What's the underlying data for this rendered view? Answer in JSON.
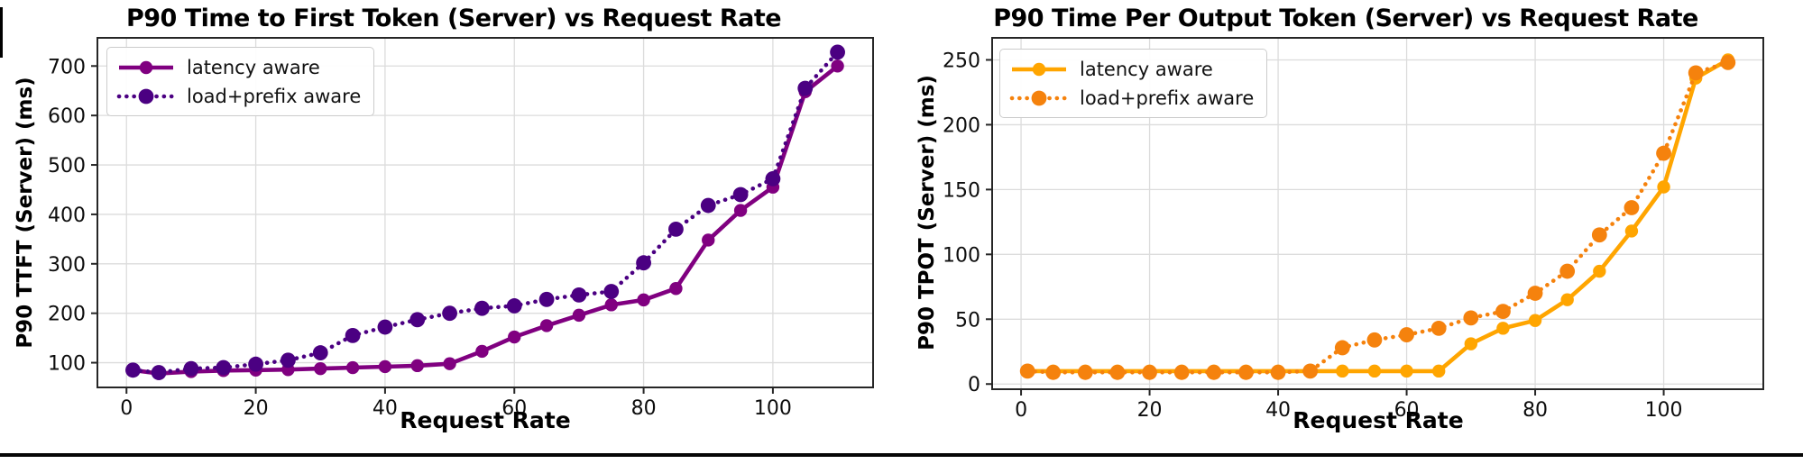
{
  "page": {
    "background": "#ffffff",
    "footer_rule_color": "#060606"
  },
  "chart_data": [
    {
      "type": "line",
      "title": "P90 Time to First Token (Server) vs Request Rate",
      "xlabel": "Request Rate",
      "ylabel": "P90 TTFT (Server) (ms)",
      "x": [
        1,
        5,
        10,
        15,
        20,
        25,
        30,
        35,
        40,
        45,
        50,
        55,
        60,
        65,
        70,
        75,
        80,
        85,
        90,
        95,
        100,
        105,
        110
      ],
      "series": [
        {
          "name": "latency aware",
          "color": "#800080",
          "line_style": "solid",
          "marker": "circle",
          "values": [
            85,
            78,
            82,
            84,
            85,
            86,
            88,
            90,
            92,
            94,
            98,
            123,
            152,
            175,
            196,
            217,
            227,
            250,
            348,
            408,
            455,
            648,
            700
          ]
        },
        {
          "name": "load+prefix aware",
          "color": "#4B0082",
          "line_style": "dotted",
          "marker": "circle",
          "values": [
            85,
            80,
            88,
            90,
            97,
            105,
            120,
            155,
            172,
            187,
            200,
            210,
            215,
            228,
            237,
            244,
            302,
            370,
            418,
            440,
            472,
            655,
            728
          ]
        }
      ],
      "xticks": [
        0,
        20,
        40,
        60,
        80,
        100
      ],
      "yticks": [
        100,
        200,
        300,
        400,
        500,
        600,
        700
      ],
      "xlim": [
        -4.5,
        115.5
      ],
      "ylim": [
        50,
        757
      ],
      "grid": true,
      "legend_position": "upper left"
    },
    {
      "type": "line",
      "title": "P90 Time Per Output Token (Server) vs Request Rate",
      "xlabel": "Request Rate",
      "ylabel": "P90 TPOT (Server) (ms)",
      "x": [
        1,
        5,
        10,
        15,
        20,
        25,
        30,
        35,
        40,
        45,
        50,
        55,
        60,
        65,
        70,
        75,
        80,
        85,
        90,
        95,
        100,
        105,
        110
      ],
      "series": [
        {
          "name": "latency aware",
          "color": "#FFA500",
          "line_style": "solid",
          "marker": "circle",
          "values": [
            10,
            10,
            10,
            10,
            10,
            10,
            10,
            10,
            10,
            10,
            10,
            10,
            10,
            10,
            31,
            43,
            49,
            65,
            87,
            118,
            152,
            236,
            250
          ]
        },
        {
          "name": "load+prefix aware",
          "color": "#F5820D",
          "line_style": "dotted",
          "marker": "circle",
          "values": [
            10,
            9,
            9,
            9,
            9,
            9,
            9,
            9,
            9,
            10,
            28,
            34,
            38,
            43,
            51,
            56,
            70,
            87,
            115,
            136,
            178,
            240,
            248
          ]
        }
      ],
      "xticks": [
        0,
        20,
        40,
        60,
        80,
        100
      ],
      "yticks": [
        0,
        50,
        100,
        150,
        200,
        250
      ],
      "xlim": [
        -4.5,
        115.5
      ],
      "ylim": [
        -4,
        267
      ],
      "grid": true,
      "legend_position": "upper left"
    }
  ]
}
